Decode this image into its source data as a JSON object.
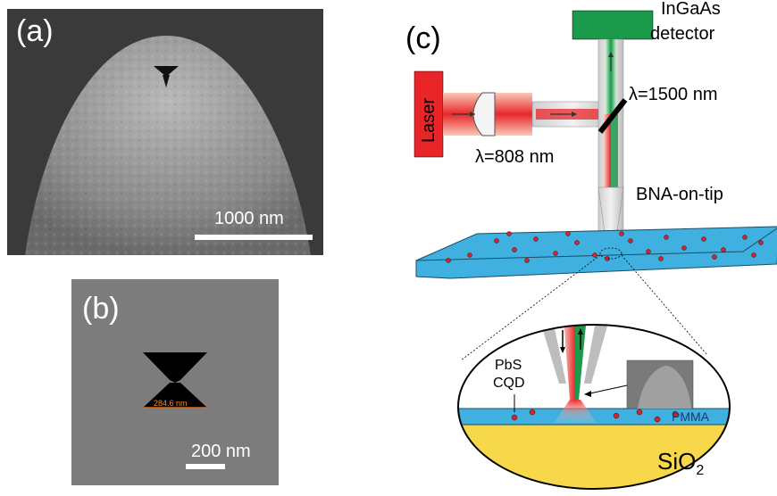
{
  "panel_a": {
    "label": "(a)",
    "scale_text": "1000 nm"
  },
  "panel_b": {
    "label": "(b)",
    "scale_text": "200 nm",
    "measure_text": "284.6 nm"
  },
  "panel_c": {
    "label": "(c)",
    "detector_line1": "InGaAs",
    "detector_line2": "detector",
    "laser_label": "Laser",
    "wavelength_in": "λ=808 nm",
    "wavelength_out": "λ=1500 nm",
    "tip_label": "BNA-on-tip",
    "pbs_line1": "PbS",
    "pbs_line2": "CQD",
    "pmma_label": "PMMA",
    "sio2_label": "SiO",
    "sio2_sub": "2"
  },
  "colors": {
    "detector": "#1a9a4a",
    "laser": "#e8262a",
    "sample_blue": "#3fb0e0",
    "substrate_yellow": "#f7d84a",
    "dots": "#d9232a"
  }
}
